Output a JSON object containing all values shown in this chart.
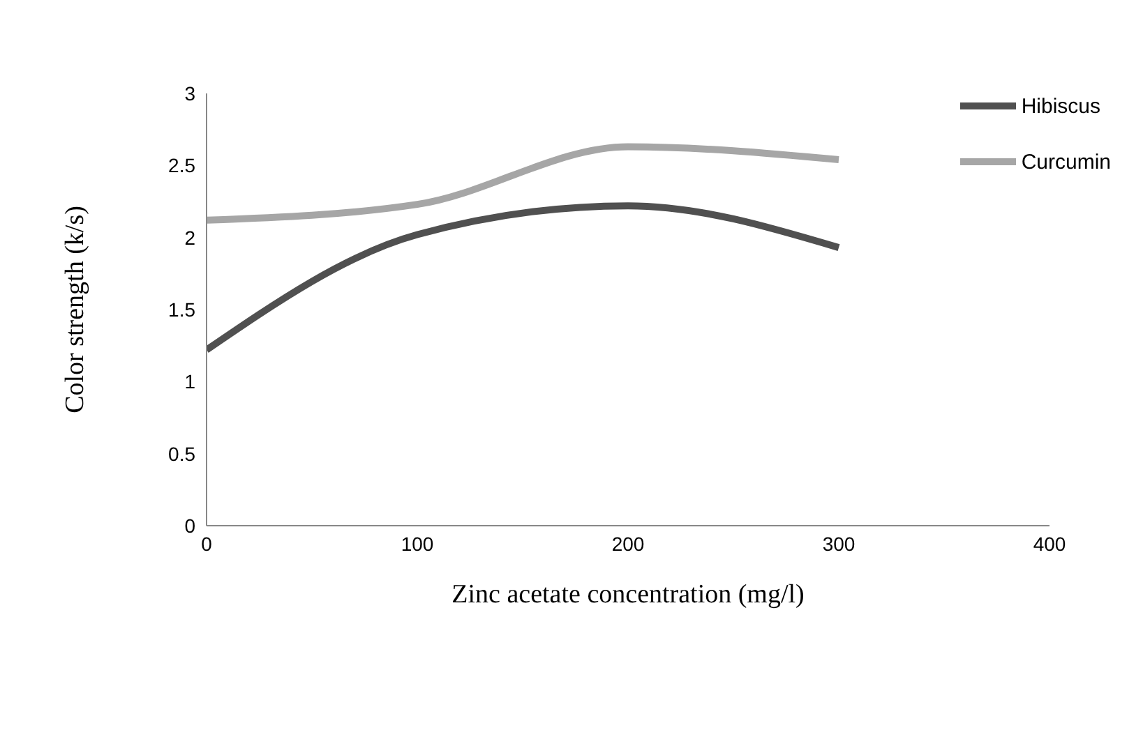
{
  "chart_data": {
    "type": "line",
    "xlabel": "Zinc acetate  concentration (mg/l)",
    "ylabel": "Color strength (k/s)",
    "x": [
      0,
      100,
      200,
      300
    ],
    "series": [
      {
        "name": "Hibiscus",
        "color": "#505050",
        "values": [
          1.22,
          2.02,
          2.22,
          1.93
        ]
      },
      {
        "name": "Curcumin",
        "color": "#a6a6a6",
        "values": [
          2.12,
          2.23,
          2.63,
          2.54
        ]
      }
    ],
    "xlim": [
      0,
      400
    ],
    "xticks": [
      0,
      100,
      200,
      300,
      400
    ],
    "ylim": [
      0,
      3
    ],
    "yticks": [
      0,
      0.5,
      1,
      1.5,
      2,
      2.5,
      3
    ],
    "grid": false,
    "legend": "top right",
    "marker": "none",
    "line_style": "solid"
  }
}
